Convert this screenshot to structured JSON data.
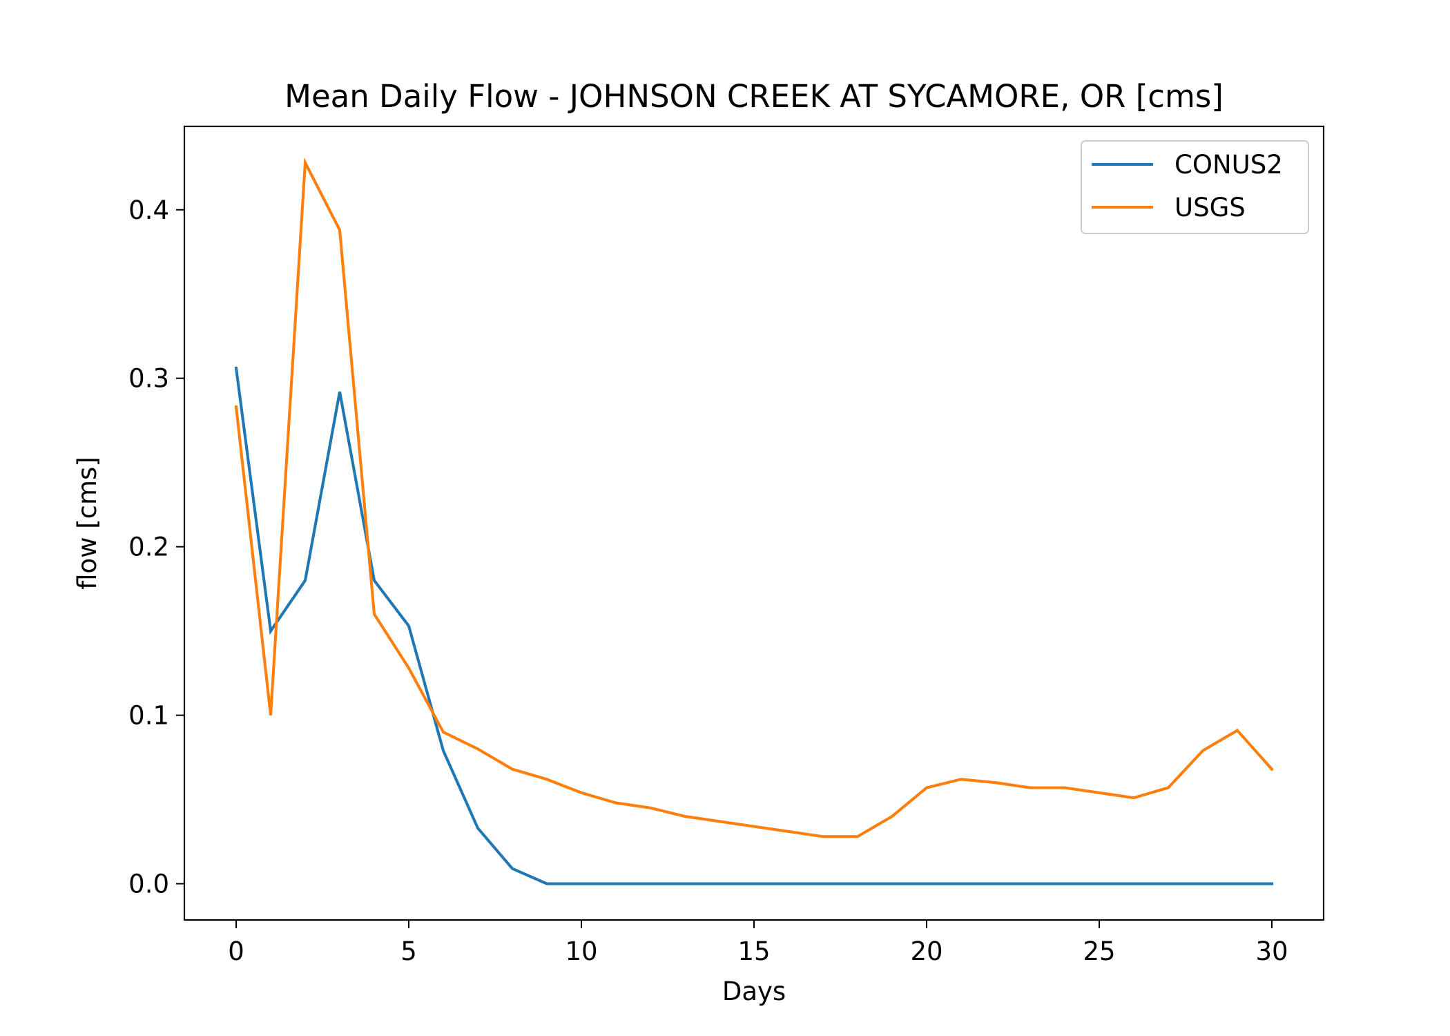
{
  "chart_data": {
    "type": "line",
    "title": "Mean Daily Flow - JOHNSON CREEK AT SYCAMORE, OR [cms]",
    "xlabel": "Days",
    "ylabel": "flow [cms]",
    "xlim": [
      -1.5,
      31.5
    ],
    "ylim": [
      -0.0215,
      0.4495
    ],
    "xticks": [
      0,
      5,
      10,
      15,
      20,
      25,
      30
    ],
    "xtick_labels": [
      "0",
      "5",
      "10",
      "15",
      "20",
      "25",
      "30"
    ],
    "yticks": [
      0.0,
      0.1,
      0.2,
      0.3,
      0.4
    ],
    "ytick_labels": [
      "0.0",
      "0.1",
      "0.2",
      "0.3",
      "0.4"
    ],
    "grid": false,
    "legend_position": "top-right",
    "x": [
      0,
      1,
      2,
      3,
      4,
      5,
      6,
      7,
      8,
      9,
      10,
      11,
      12,
      13,
      14,
      15,
      16,
      17,
      18,
      19,
      20,
      21,
      22,
      23,
      24,
      25,
      26,
      27,
      28,
      29,
      30
    ],
    "series": [
      {
        "name": "CONUS2",
        "color": "#1f77b4",
        "values": [
          0.306,
          0.15,
          0.18,
          0.292,
          0.18,
          0.153,
          0.079,
          0.033,
          0.009,
          0.0,
          0.0,
          0.0,
          0.0,
          0.0,
          0.0,
          0.0,
          0.0,
          0.0,
          0.0,
          0.0,
          0.0,
          0.0,
          0.0,
          0.0,
          0.0,
          0.0,
          0.0,
          0.0,
          0.0,
          0.0,
          0.0
        ]
      },
      {
        "name": "USGS",
        "color": "#ff7f0e",
        "values": [
          0.283,
          0.1,
          0.428,
          0.388,
          0.16,
          0.128,
          0.09,
          0.08,
          0.068,
          0.062,
          0.054,
          0.048,
          0.045,
          0.04,
          0.037,
          0.034,
          0.031,
          0.028,
          0.028,
          0.04,
          0.057,
          0.062,
          0.06,
          0.057,
          0.057,
          0.054,
          0.051,
          0.057,
          0.079,
          0.091,
          0.068
        ]
      }
    ]
  }
}
